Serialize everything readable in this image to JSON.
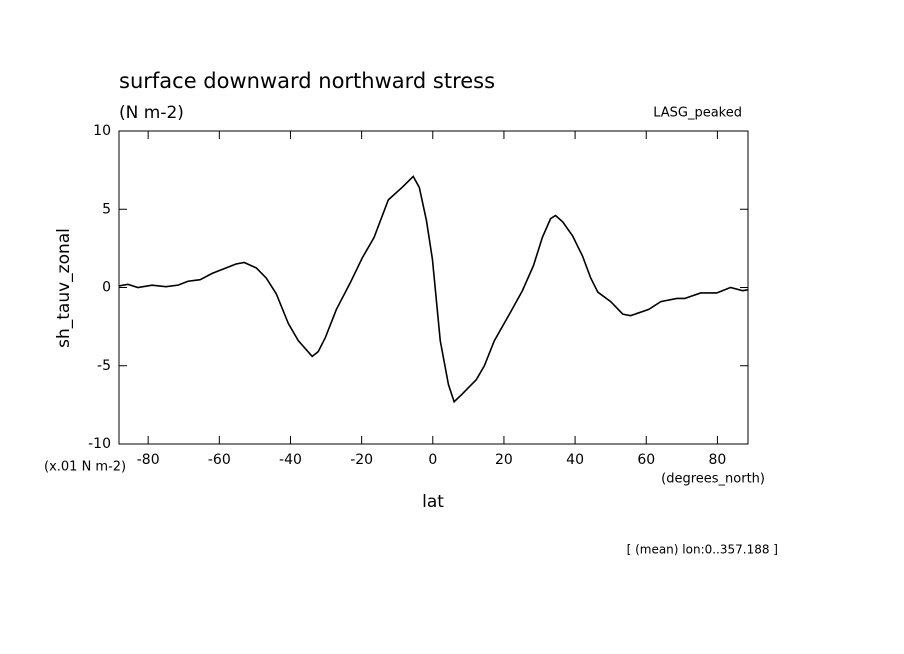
{
  "chart_data": {
    "type": "line",
    "title": "surface downward northward stress",
    "subtitle": "(N m-2)",
    "dataset_label": "LASG_peaked",
    "y_label": "sh_tauv_zonal",
    "y_units": "(x.01 N m-2)",
    "x_label": "lat",
    "x_units": "(degrees_north)",
    "footnote": "[ (mean) lon:0..357.188 ]",
    "x": [
      -88.2,
      -85.7,
      -82.9,
      -78.9,
      -75,
      -71.6,
      -68.8,
      -65.4,
      -62,
      -58.7,
      -55.3,
      -53,
      -49.6,
      -46.8,
      -44,
      -40.6,
      -37.8,
      -33.9,
      -32.2,
      -30.2,
      -27.1,
      -23.2,
      -19.8,
      -16.5,
      -12.5,
      -8.6,
      -5.5,
      -3.8,
      -1.8,
      -0.1,
      2.1,
      4.4,
      6,
      8.3,
      10,
      12.2,
      14.5,
      17.3,
      21.8,
      25.2,
      28.3,
      30.8,
      33.1,
      34.5,
      36.5,
      39.3,
      42.1,
      44.4,
      46.4,
      50,
      53.4,
      55.6,
      60.7,
      64.1,
      68.6,
      70.8,
      75.3,
      79.8,
      83.7,
      87.1,
      88.6
    ],
    "series": [
      {
        "color": "#000000",
        "values": [
          0.1,
          0.2,
          0.0,
          0.15,
          0.05,
          0.15,
          0.4,
          0.5,
          0.9,
          1.2,
          1.5,
          1.6,
          1.25,
          0.6,
          -0.4,
          -2.3,
          -3.4,
          -4.4,
          -4.1,
          -3.2,
          -1.4,
          0.3,
          1.9,
          3.2,
          5.6,
          6.4,
          7.1,
          6.4,
          4.3,
          1.8,
          -3.4,
          -6.2,
          -7.3,
          -6.8,
          -6.4,
          -5.9,
          -5.0,
          -3.4,
          -1.6,
          -0.2,
          1.4,
          3.2,
          4.4,
          4.6,
          4.2,
          3.3,
          2.0,
          0.6,
          -0.3,
          -0.9,
          -1.7,
          -1.8,
          -1.4,
          -0.9,
          -0.7,
          -0.7,
          -0.35,
          -0.35,
          0,
          -0.2,
          -0.15
        ]
      }
    ],
    "xlim": [
      -88.2,
      88.6
    ],
    "xticks": [
      -80,
      -60,
      -40,
      -20,
      0,
      20,
      40,
      60,
      80
    ],
    "ylim": [
      -10,
      10
    ],
    "yticks": [
      -10,
      -5,
      0,
      5,
      10
    ],
    "grid": false
  }
}
